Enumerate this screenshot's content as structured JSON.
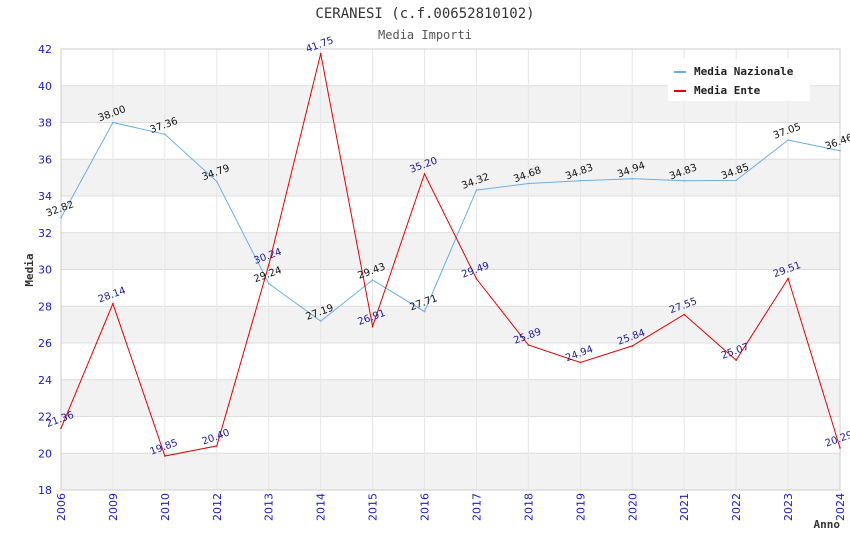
{
  "chart_data": {
    "type": "line",
    "title": "CERANESI (c.f.00652810102)",
    "subtitle": "Media Importi",
    "xlabel": "Anno",
    "ylabel": "Media",
    "ylim": [
      18,
      42
    ],
    "y_ticks": [
      "18",
      "20",
      "22",
      "24",
      "26",
      "28",
      "30",
      "32",
      "34",
      "36",
      "38",
      "40",
      "42"
    ],
    "categories": [
      "2006",
      "2009",
      "2010",
      "2012",
      "2013",
      "2014",
      "2015",
      "2016",
      "2017",
      "2018",
      "2019",
      "2020",
      "2021",
      "2022",
      "2023",
      "2024"
    ],
    "legend_position": "top-right",
    "series": [
      {
        "name": "Media Nazionale",
        "color": "#6aaee8",
        "label_color": "#111111",
        "values": [
          32.82,
          38.0,
          37.36,
          34.79,
          29.24,
          27.19,
          29.43,
          27.71,
          34.32,
          34.68,
          34.83,
          34.94,
          34.83,
          34.85,
          37.05,
          36.46
        ],
        "labels": [
          "32.82",
          "38.00",
          "37.36",
          "34.79",
          "29.24",
          "27.19",
          "29.43",
          "27.71",
          "34.32",
          "34.68",
          "34.83",
          "34.94",
          "34.83",
          "34.85",
          "37.05",
          "36.46"
        ]
      },
      {
        "name": "Media Ente",
        "color": "#e60000",
        "label_color": "#1a1a99",
        "values": [
          21.36,
          28.14,
          19.85,
          20.4,
          30.24,
          41.75,
          26.91,
          35.2,
          29.49,
          25.89,
          24.94,
          25.84,
          27.55,
          25.07,
          29.51,
          20.29
        ],
        "labels": [
          "21.36",
          "28.14",
          "19.85",
          "20.40",
          "30.24",
          "41.75",
          "26.91",
          "35.20",
          "29.49",
          "25.89",
          "24.94",
          "25.84",
          "27.55",
          "25.07",
          "29.51",
          "20.29"
        ]
      }
    ]
  }
}
